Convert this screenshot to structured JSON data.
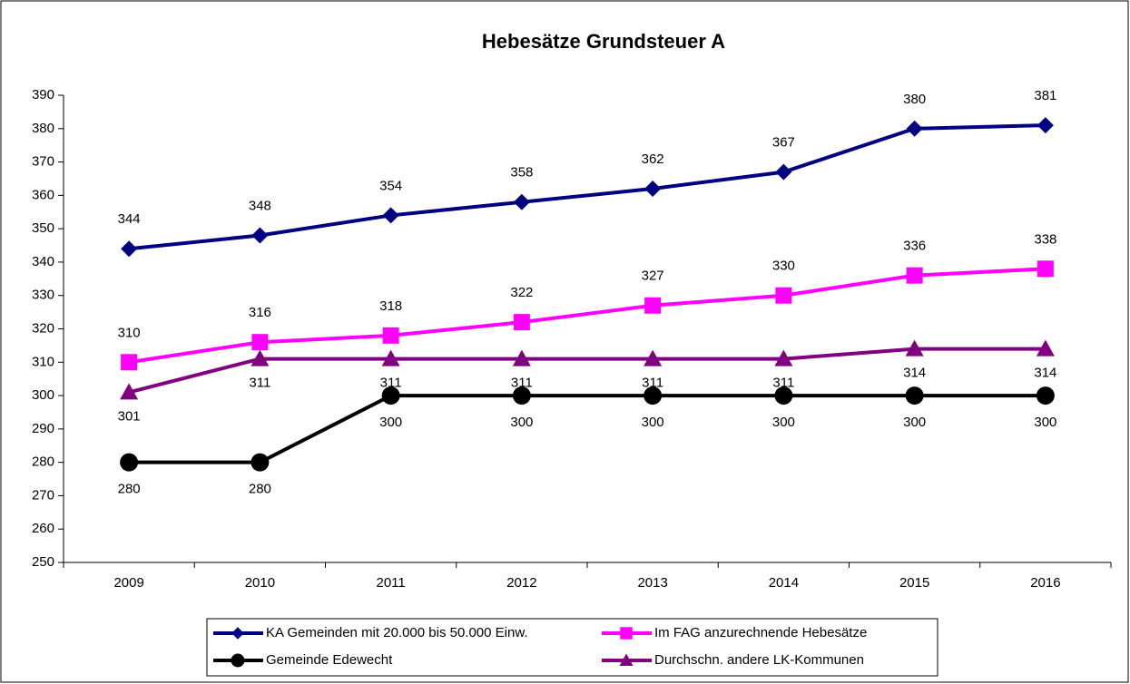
{
  "chart_data": {
    "type": "line",
    "title": "Hebesätze Grundsteuer A",
    "categories": [
      "2009",
      "2010",
      "2011",
      "2012",
      "2013",
      "2014",
      "2015",
      "2016"
    ],
    "series": [
      {
        "name": "KA Gemeinden mit 20.000 bis 50.000 Einw.",
        "color": "#000080",
        "marker": "diamond",
        "values": [
          344,
          348,
          354,
          358,
          362,
          367,
          380,
          381
        ]
      },
      {
        "name": "Im FAG anzurechnende Hebesätze",
        "color": "#ff00ff",
        "marker": "square",
        "values": [
          310,
          316,
          318,
          322,
          327,
          330,
          336,
          338
        ]
      },
      {
        "name": "Gemeinde Edewecht",
        "color": "#000000",
        "marker": "circle",
        "values": [
          280,
          280,
          300,
          300,
          300,
          300,
          300,
          300
        ]
      },
      {
        "name": "Durchschn. andere LK-Kommunen",
        "color": "#800080",
        "marker": "triangle",
        "values": [
          301,
          311,
          311,
          311,
          311,
          311,
          314,
          314
        ]
      }
    ],
    "ylim": [
      250,
      390
    ],
    "yticks": [
      250,
      260,
      270,
      280,
      290,
      300,
      310,
      320,
      330,
      340,
      350,
      360,
      370,
      380,
      390
    ],
    "grid": false,
    "legend": "bottom",
    "data_labels": true
  }
}
